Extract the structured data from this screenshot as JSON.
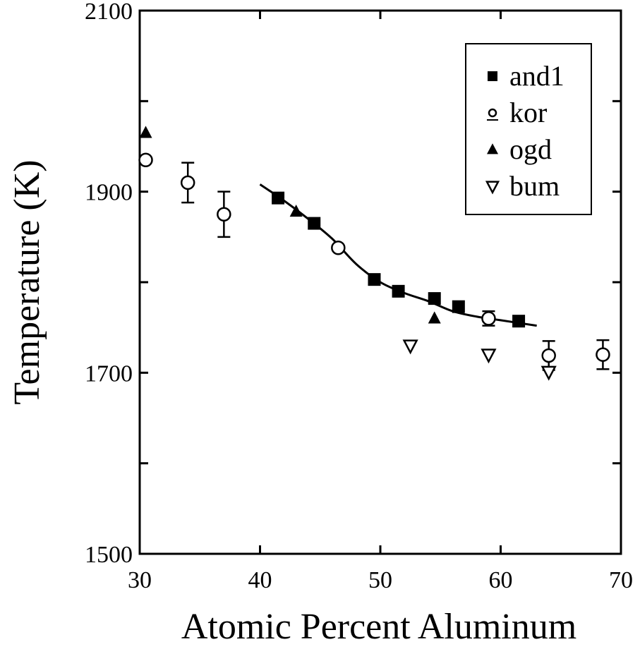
{
  "chart_data": {
    "type": "scatter",
    "title": "",
    "xlabel": "Atomic Percent Aluminum",
    "ylabel": "Temperature (K)",
    "xlim": [
      30,
      70
    ],
    "ylim": [
      1500,
      2100
    ],
    "x_ticks": [
      30,
      40,
      50,
      60,
      70
    ],
    "x_tick_labels": [
      "30",
      "40",
      "50",
      "60",
      "70"
    ],
    "y_ticks": [
      1500,
      1700,
      1900,
      2100
    ],
    "y_tick_labels": [
      "1500",
      "1700",
      "1900",
      "2100"
    ],
    "y_minor_ticks": [
      1600,
      1800,
      2000
    ],
    "grid": false,
    "legend_position": "top-right",
    "series": [
      {
        "name": "and1",
        "marker": "filled-square",
        "points": [
          {
            "x": 41.5,
            "y": 1893
          },
          {
            "x": 44.5,
            "y": 1865
          },
          {
            "x": 49.5,
            "y": 1803
          },
          {
            "x": 51.5,
            "y": 1790
          },
          {
            "x": 54.5,
            "y": 1782
          },
          {
            "x": 56.5,
            "y": 1773
          },
          {
            "x": 61.5,
            "y": 1757
          }
        ]
      },
      {
        "name": "kor",
        "marker": "open-circle",
        "points": [
          {
            "x": 30.5,
            "y": 1935,
            "err": 0
          },
          {
            "x": 34.0,
            "y": 1910,
            "err": 22
          },
          {
            "x": 37.0,
            "y": 1875,
            "err": 25
          },
          {
            "x": 46.5,
            "y": 1838,
            "err": 0
          },
          {
            "x": 59.0,
            "y": 1760,
            "err": 8
          },
          {
            "x": 64.0,
            "y": 1719,
            "err": 16
          },
          {
            "x": 68.5,
            "y": 1720,
            "err": 16
          }
        ]
      },
      {
        "name": "ogd",
        "marker": "filled-triangle",
        "points": [
          {
            "x": 30.5,
            "y": 1965
          },
          {
            "x": 43.0,
            "y": 1878
          },
          {
            "x": 54.5,
            "y": 1760
          }
        ]
      },
      {
        "name": "bum",
        "marker": "open-triangle-down",
        "points": [
          {
            "x": 52.5,
            "y": 1730
          },
          {
            "x": 59.0,
            "y": 1720
          },
          {
            "x": 64.0,
            "y": 1701
          }
        ]
      }
    ],
    "fit_curve": {
      "points": [
        {
          "x": 40.0,
          "y": 1908
        },
        {
          "x": 42.0,
          "y": 1890
        },
        {
          "x": 44.0,
          "y": 1870
        },
        {
          "x": 46.0,
          "y": 1848
        },
        {
          "x": 48.0,
          "y": 1820
        },
        {
          "x": 50.0,
          "y": 1800
        },
        {
          "x": 52.0,
          "y": 1788
        },
        {
          "x": 54.0,
          "y": 1779
        },
        {
          "x": 56.0,
          "y": 1768
        },
        {
          "x": 58.0,
          "y": 1762
        },
        {
          "x": 60.0,
          "y": 1758
        },
        {
          "x": 63.0,
          "y": 1752
        }
      ]
    }
  }
}
